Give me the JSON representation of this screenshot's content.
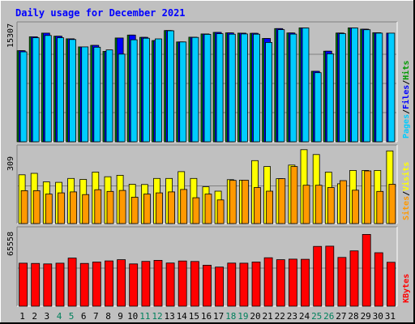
{
  "chart_data": {
    "type": "bar",
    "title": "Daily usage for December 2021",
    "categories": [
      "1",
      "2",
      "3",
      "4",
      "5",
      "6",
      "7",
      "8",
      "9",
      "10",
      "11",
      "12",
      "13",
      "14",
      "15",
      "16",
      "17",
      "18",
      "19",
      "20",
      "21",
      "22",
      "23",
      "24",
      "25",
      "26",
      "27",
      "28",
      "29",
      "30",
      "31"
    ],
    "weekend_days": [
      "4",
      "5",
      "11",
      "12",
      "18",
      "19",
      "25",
      "26"
    ],
    "panels": [
      {
        "id": "hits-panel",
        "max_label": "15307",
        "ymax": 15307,
        "right_label": [
          "Pages",
          "/",
          "Files",
          "/",
          "Hits"
        ],
        "series": [
          {
            "name": "Hits",
            "color": "#009900",
            "values": [
              11950,
              13780,
              14250,
              13850,
              13510,
              12450,
              12650,
              11850,
              13620,
              14000,
              13700,
              13280,
              14600,
              13100,
              13720,
              14150,
              14350,
              14290,
              14250,
              14230,
              13550,
              14850,
              14280,
              14950,
              9250,
              11880,
              14270,
              14950,
              14780,
              14310,
              0
            ]
          },
          {
            "name": "Files",
            "color": "#0000ff",
            "values": [
              11950,
              13780,
              14250,
              13850,
              13510,
              12450,
              12650,
              11850,
              13620,
              14000,
              13700,
              13280,
              14600,
              13100,
              13720,
              14150,
              14350,
              14290,
              14250,
              14230,
              13550,
              14850,
              14280,
              14950,
              9250,
              11880,
              14270,
              14950,
              14780,
              14310,
              14250
            ]
          },
          {
            "name": "Pages",
            "color": "#00ccff",
            "values": [
              11800,
              13650,
              13950,
              13650,
              13420,
              12450,
              12400,
              12050,
              11500,
              13380,
              13580,
              13500,
              14560,
              13100,
              13690,
              14090,
              14180,
              14120,
              14150,
              14120,
              13030,
              14710,
              14130,
              14930,
              9070,
              11540,
              14190,
              14930,
              14700,
              14250,
              14250
            ]
          }
        ]
      },
      {
        "id": "visits-panel",
        "max_label": "309",
        "ymax": 309,
        "right_label": [
          "Sites",
          "/",
          "Visits"
        ],
        "series": [
          {
            "name": "Visits",
            "color": "#ffff00",
            "values": [
              200,
              206,
              171,
              169,
              185,
              181,
              211,
              192,
              198,
              161,
              160,
              185,
              185,
              213,
              185,
              151,
              133,
              180,
              178,
              258,
              234,
              184,
              240,
              303,
              283,
              211,
              163,
              218,
              218,
              218,
              298
            ]
          },
          {
            "name": "Sites",
            "color": "#ff9900",
            "values": [
              135,
              135,
              121,
              126,
              130,
              119,
              139,
              132,
              136,
              108,
              121,
              126,
              130,
              140,
              106,
              121,
              97,
              177,
              178,
              148,
              133,
              184,
              234,
              157,
              157,
              148,
              176,
              137,
              216,
              132,
              161
            ]
          }
        ]
      },
      {
        "id": "kbytes-panel",
        "max_label": "65558",
        "ymax": 65558,
        "right_label": [
          "KBytes"
        ],
        "series": [
          {
            "name": "KBytes",
            "color": "#ff0000",
            "values": [
              37000,
              36800,
              36400,
              37000,
              41400,
              36800,
              38000,
              39000,
              40000,
              36400,
              38600,
              39500,
              37200,
              38900,
              38500,
              35300,
              33700,
              37100,
              37000,
              38000,
              41700,
              40000,
              40500,
              40400,
              51500,
              51700,
              42000,
              47600,
              61800,
              46000,
              37800
            ]
          }
        ]
      }
    ]
  }
}
